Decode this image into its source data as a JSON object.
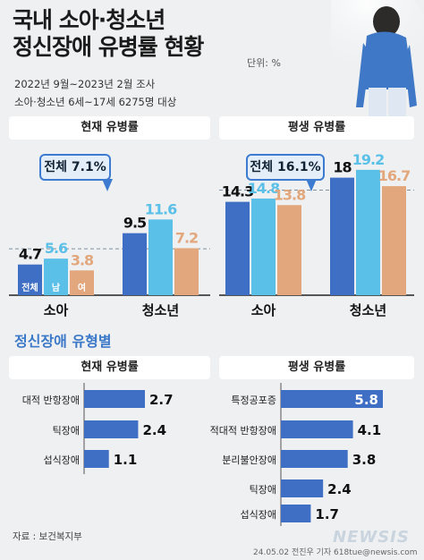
{
  "header": {
    "title_line1": "국내 소아·청소년",
    "title_line2": "정신장애 유병률 현황",
    "unit": "단위: %",
    "survey_period": "2022년 9월~2023년 2월 조사",
    "survey_target": "소아·청소년 6세~17세 6275명 대상"
  },
  "colors": {
    "total": "#3f6fc4",
    "male": "#5bc0e8",
    "female": "#e2a77c",
    "hbar": "#3f6fc4",
    "accent": "#3b78c8"
  },
  "top_left": {
    "panel_title": "현재 유병률",
    "callout": "전체 7.1%"
  },
  "top_right": {
    "panel_title": "평생 유병률",
    "callout": "전체 16.1%"
  },
  "section_title": "정신장애 유형별",
  "bottom_left_title": "현재 유병률",
  "bottom_right_title": "평생 유병률",
  "footer": {
    "source": "자료 : 보건복지부",
    "credit": "24.05.02 전진우 기자 618tue@newsis.com",
    "watermark": "NEWSIS"
  },
  "chart_data": [
    {
      "type": "bar",
      "panel": "현재 유병률",
      "categories": [
        "소아",
        "청소년"
      ],
      "series": [
        {
          "name": "전체",
          "values": [
            4.7,
            9.5
          ]
        },
        {
          "name": "남",
          "values": [
            5.6,
            11.6
          ]
        },
        {
          "name": "여",
          "values": [
            3.8,
            7.2
          ]
        }
      ],
      "reference_line": 7.1,
      "ylim": [
        0,
        20
      ]
    },
    {
      "type": "bar",
      "panel": "평생 유병률",
      "categories": [
        "소아",
        "청소년"
      ],
      "series": [
        {
          "values": [
            14.3,
            18
          ]
        },
        {
          "values": [
            14.8,
            19.2
          ]
        },
        {
          "values": [
            13.8,
            16.7
          ]
        }
      ],
      "reference_line": 16.1,
      "ylim": [
        0,
        20
      ]
    },
    {
      "type": "bar",
      "orientation": "horizontal",
      "panel": "현재 유병률",
      "categories": [
        "대적 반항장애",
        "틱장애",
        "섭식장애"
      ],
      "values": [
        2.7,
        2.4,
        1.1
      ],
      "xlim": [
        0,
        3.2
      ]
    },
    {
      "type": "bar",
      "orientation": "horizontal",
      "panel": "평생 유병률",
      "categories": [
        "특정공포증",
        "적대적 반항장애",
        "분리불안장애",
        "틱장애",
        "섭식장애"
      ],
      "values": [
        5.8,
        4.1,
        3.8,
        2.4,
        1.7
      ],
      "xlim": [
        0,
        6
      ]
    }
  ]
}
